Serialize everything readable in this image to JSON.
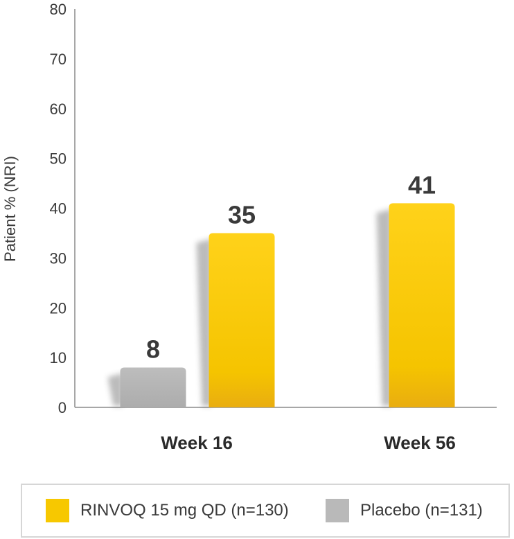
{
  "chart_data": {
    "type": "bar",
    "ylabel": "Patient % (NRI)",
    "ylim": [
      0,
      80
    ],
    "yticks": [
      0,
      10,
      20,
      30,
      40,
      50,
      60,
      70,
      80
    ],
    "categories": [
      "Week 16",
      "Week 56"
    ],
    "series": [
      {
        "name": "Placebo (n=131)",
        "color": "#b9b9b9",
        "values": [
          8,
          null
        ]
      },
      {
        "name": "RINVOQ 15 mg QD (n=130)",
        "color": "#f7c800",
        "values": [
          35,
          41
        ]
      }
    ],
    "data_labels": [
      "8",
      "35",
      "41"
    ],
    "grid": false,
    "legend_position": "bottom"
  },
  "legend": {
    "items": [
      {
        "label": "RINVOQ 15 mg QD (n=130)",
        "color": "#f7c800"
      },
      {
        "label": "Placebo (n=131)",
        "color": "#b9b9b9"
      }
    ]
  }
}
